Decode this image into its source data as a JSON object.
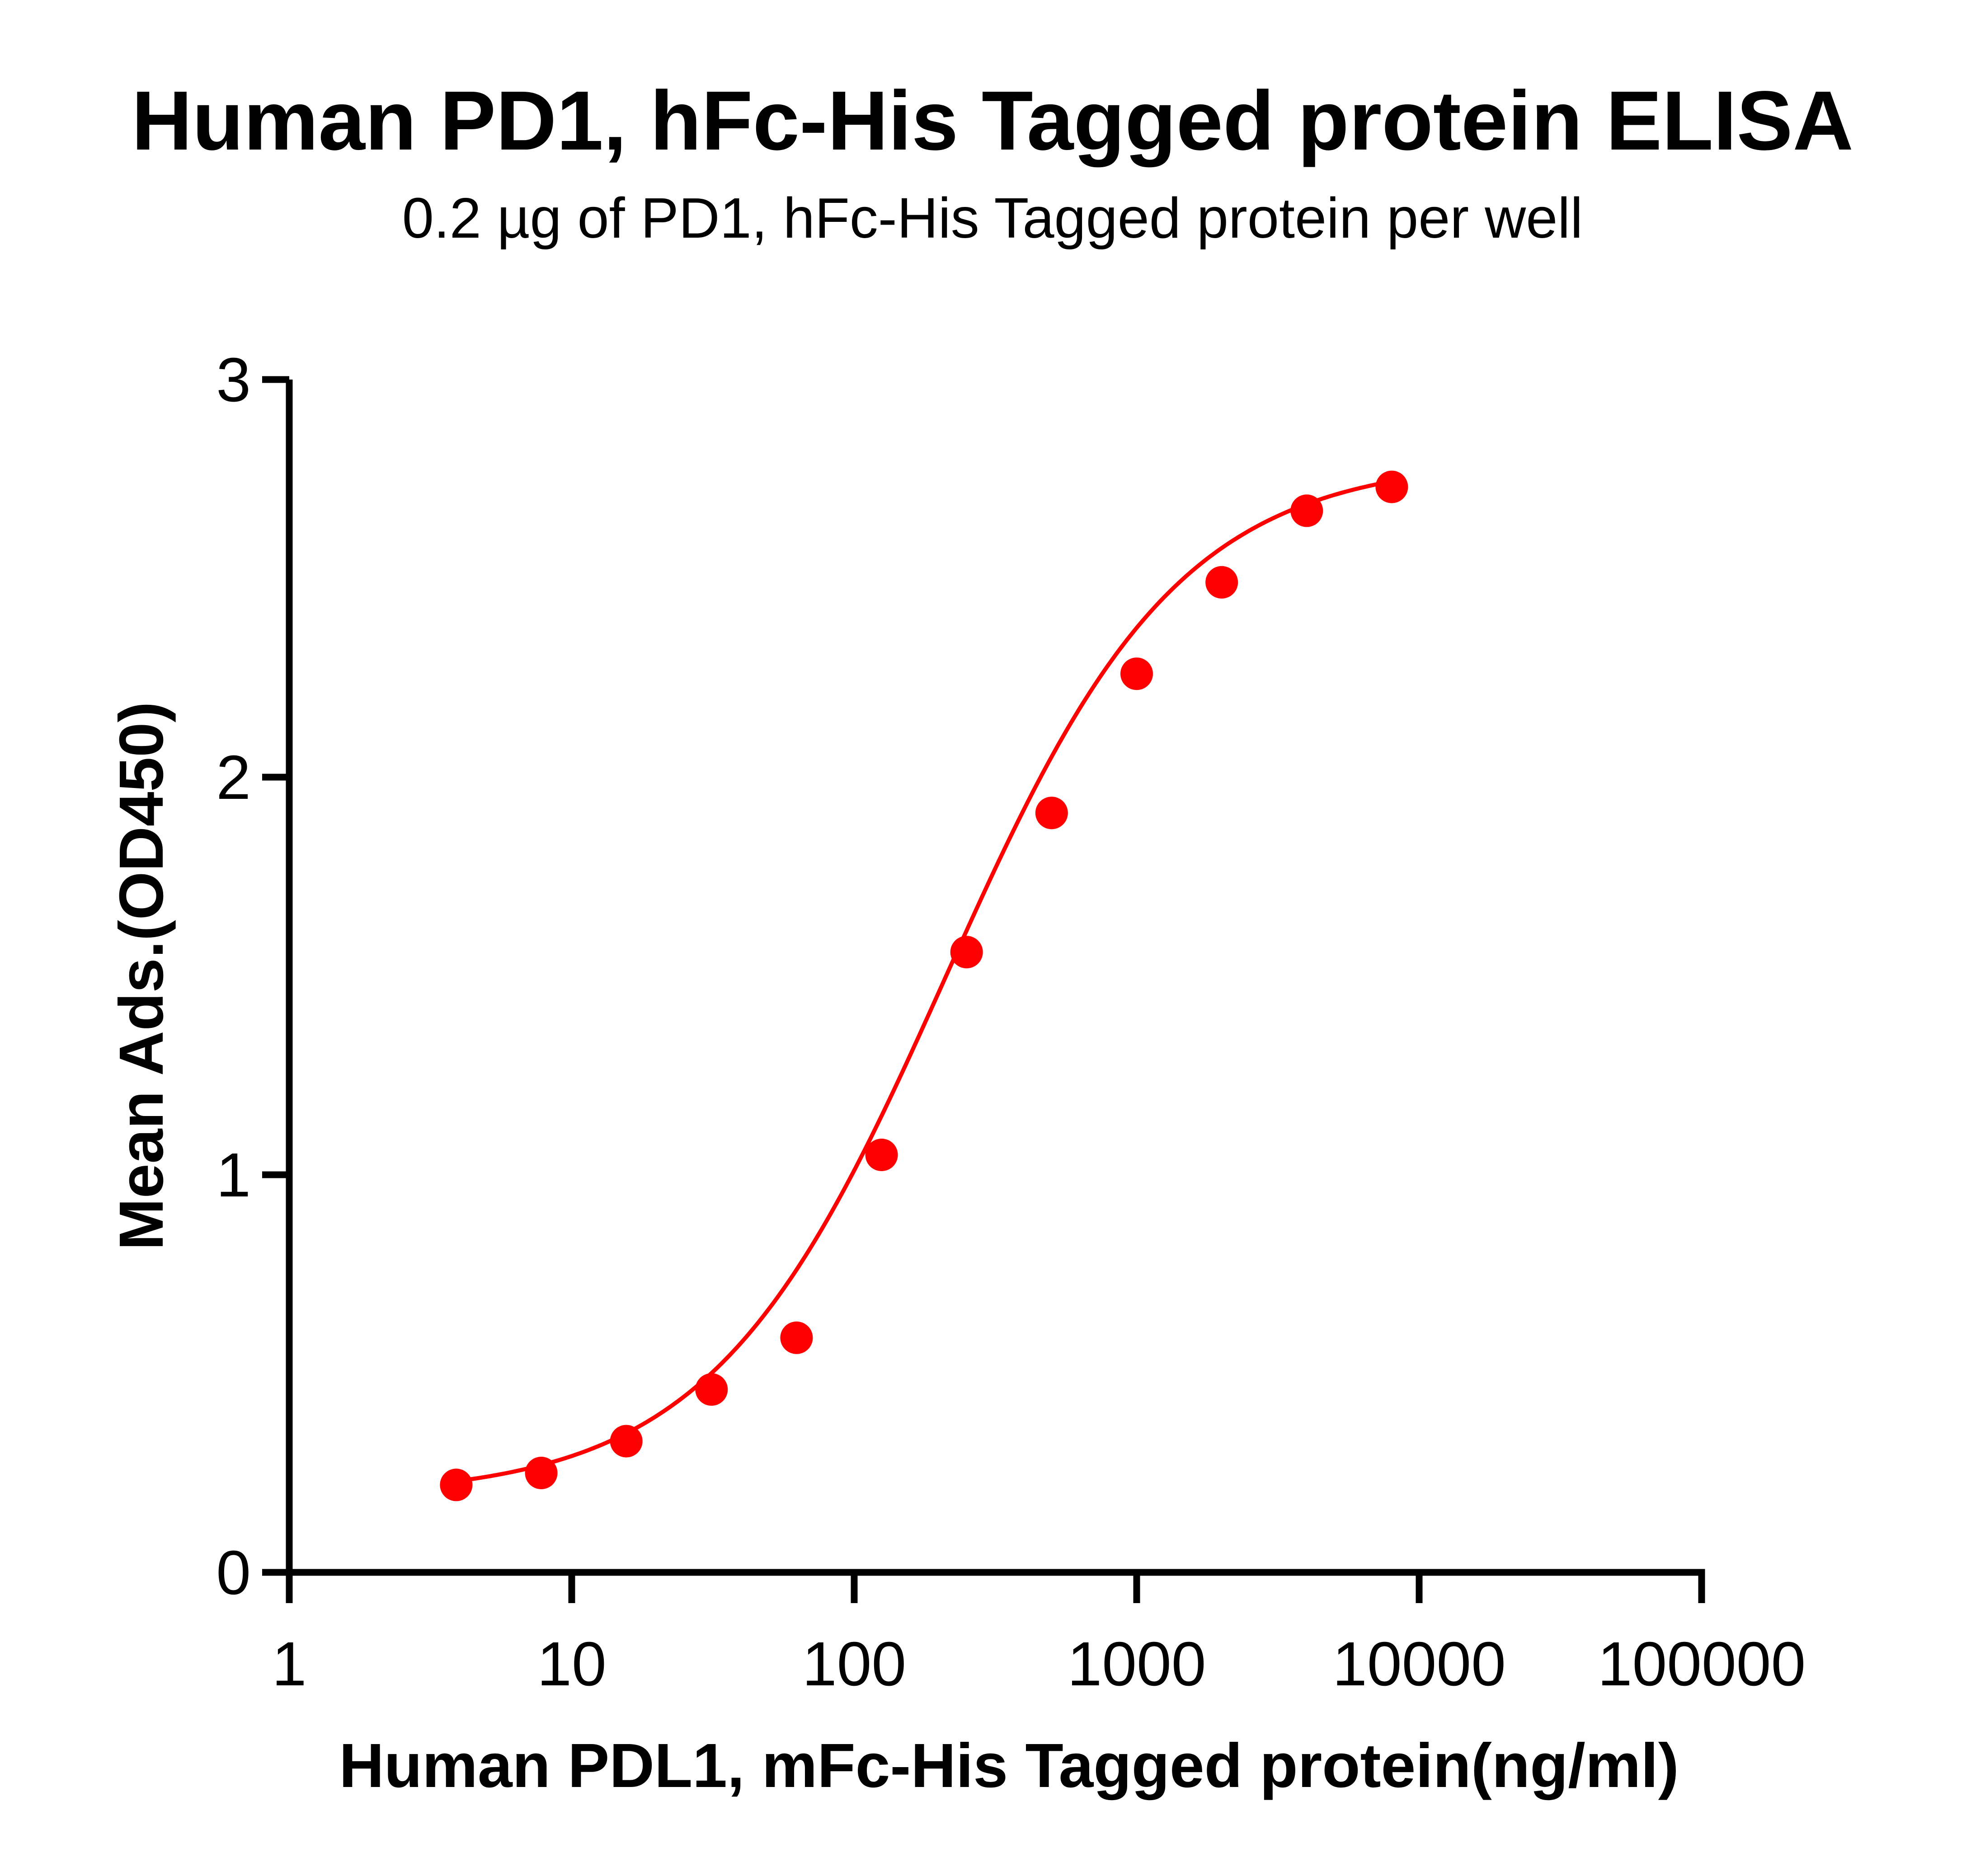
{
  "chart_data": {
    "type": "scatter",
    "title": "Human PD1, hFc-His Tagged protein ELISA",
    "subtitle": "0.2 µg of PD1, hFc-His Tagged protein per well",
    "xlabel": "Human PDL1, mFc-His Tagged protein(ng/ml)",
    "ylabel": "Mean Ads.(OD450)",
    "xscale": "log",
    "xlim": [
      1,
      100000
    ],
    "ylim": [
      0,
      3
    ],
    "xticks": [
      1,
      10,
      100,
      1000,
      10000,
      100000
    ],
    "xtick_labels": [
      "1",
      "10",
      "100",
      "1000",
      "10000",
      "100000"
    ],
    "yticks": [
      0,
      1,
      2,
      3
    ],
    "ytick_labels": [
      "0",
      "1",
      "2",
      "3"
    ],
    "grid": false,
    "color": "#ff0000",
    "series": [
      {
        "x": [
          3.9,
          7.8,
          15.6,
          31.25,
          62.5,
          125,
          250,
          500,
          1000,
          2000,
          4000,
          8000
        ],
        "y": [
          0.22,
          0.25,
          0.33,
          0.46,
          0.59,
          1.05,
          1.56,
          1.91,
          2.26,
          2.49,
          2.67,
          2.73
        ],
        "fit": "sigmoidal"
      }
    ]
  }
}
